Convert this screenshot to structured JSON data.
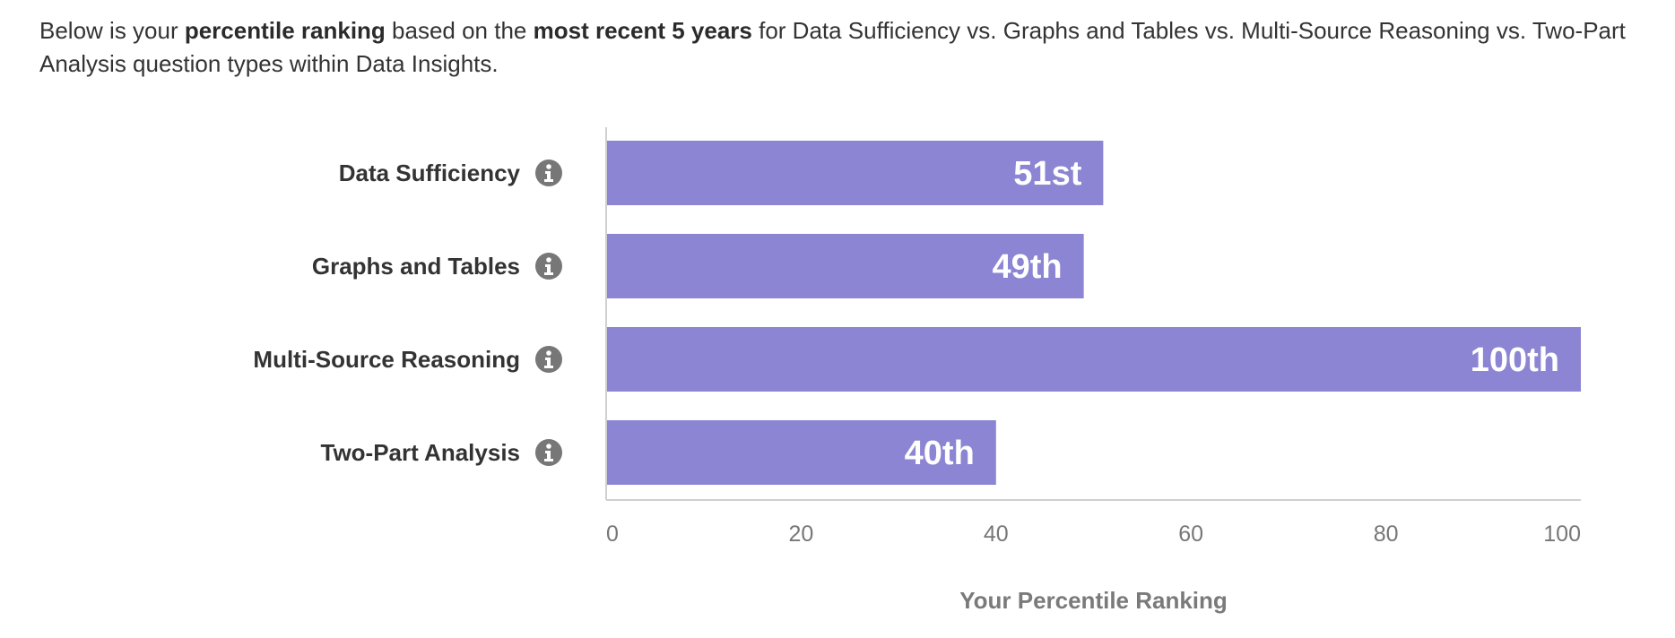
{
  "intro": {
    "part1": "Below is your ",
    "bold1": "percentile ranking",
    "part2": " based on the ",
    "bold2": "most recent 5 years",
    "part3": " for Data Sufficiency vs. Graphs and Tables vs. Multi-Source Reasoning vs. Two-Part Analysis question types within Data Insights."
  },
  "chart_data": {
    "type": "bar",
    "orientation": "horizontal",
    "categories": [
      "Data Sufficiency",
      "Graphs and Tables",
      "Multi-Source Reasoning",
      "Two-Part Analysis"
    ],
    "values": [
      51,
      49,
      100,
      40
    ],
    "value_labels": [
      "51st",
      "49th",
      "100th",
      "40th"
    ],
    "xlabel": "Your Percentile Ranking",
    "ylabel": "",
    "xlim": [
      0,
      100
    ],
    "xticks": [
      "0",
      "20",
      "40",
      "60",
      "80",
      "100"
    ],
    "bar_color": "#8b85d3",
    "axis_color": "#d0d0d0",
    "info_icon_color": "#777777",
    "grid": false
  }
}
